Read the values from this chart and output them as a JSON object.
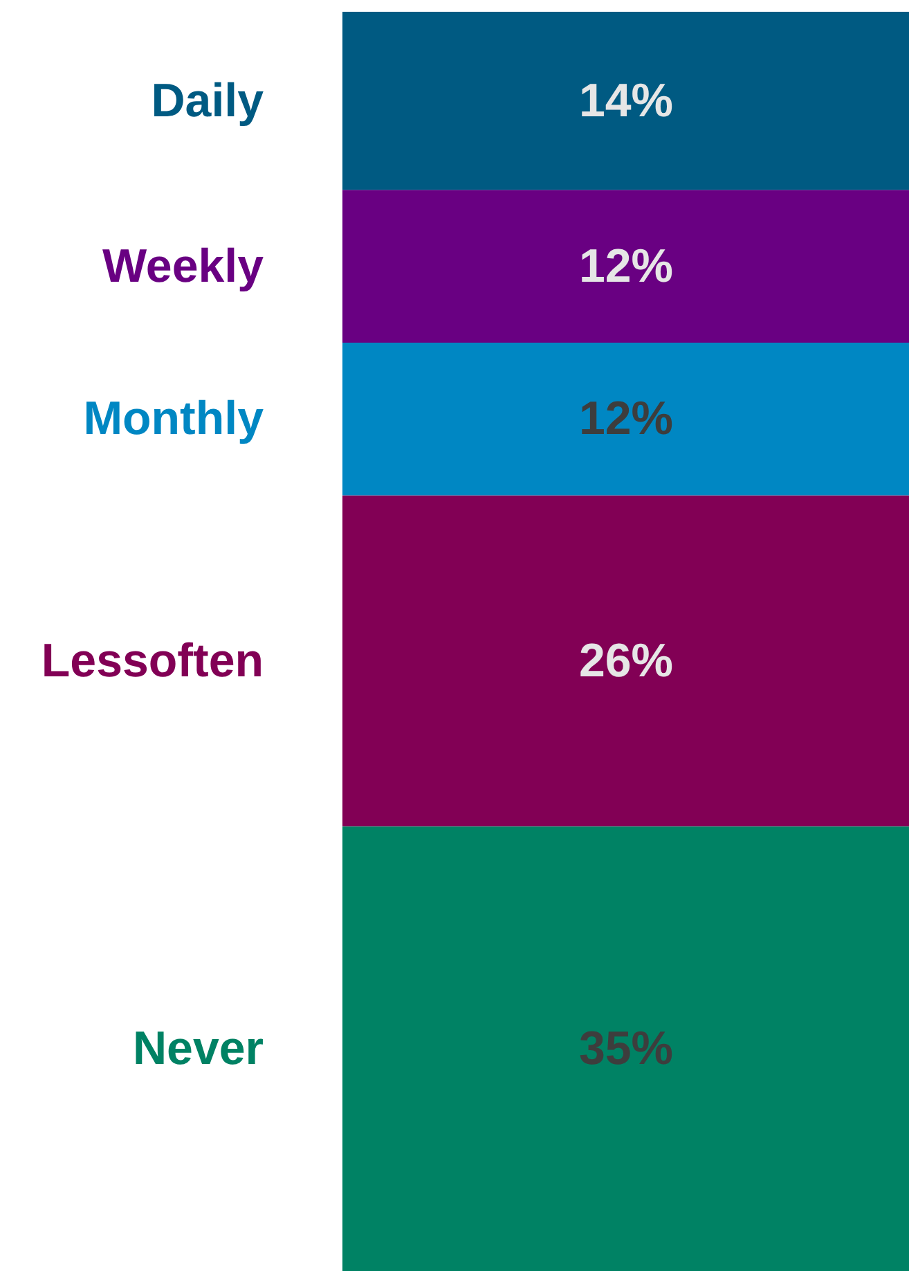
{
  "chart_data": {
    "type": "bar",
    "stacked": true,
    "categories": [
      null
    ],
    "tick_labels": false,
    "grid": false,
    "series": [
      {
        "name": "Never",
        "color": "#008264",
        "values": [
          35
        ],
        "value_labels": [
          "35%"
        ]
      },
      {
        "name": "Lessoften",
        "color": "#820055",
        "values": [
          26
        ],
        "value_labels": [
          "26%"
        ]
      },
      {
        "name": "Monthly",
        "color": "#0087c3",
        "values": [
          12
        ],
        "value_labels": [
          "12%"
        ]
      },
      {
        "name": "Weekly",
        "color": "#690082",
        "values": [
          12
        ],
        "value_labels": [
          "12%"
        ]
      },
      {
        "name": "Daily",
        "color": "#005a82",
        "values": [
          14
        ],
        "value_labels": [
          "14%"
        ]
      }
    ]
  }
}
